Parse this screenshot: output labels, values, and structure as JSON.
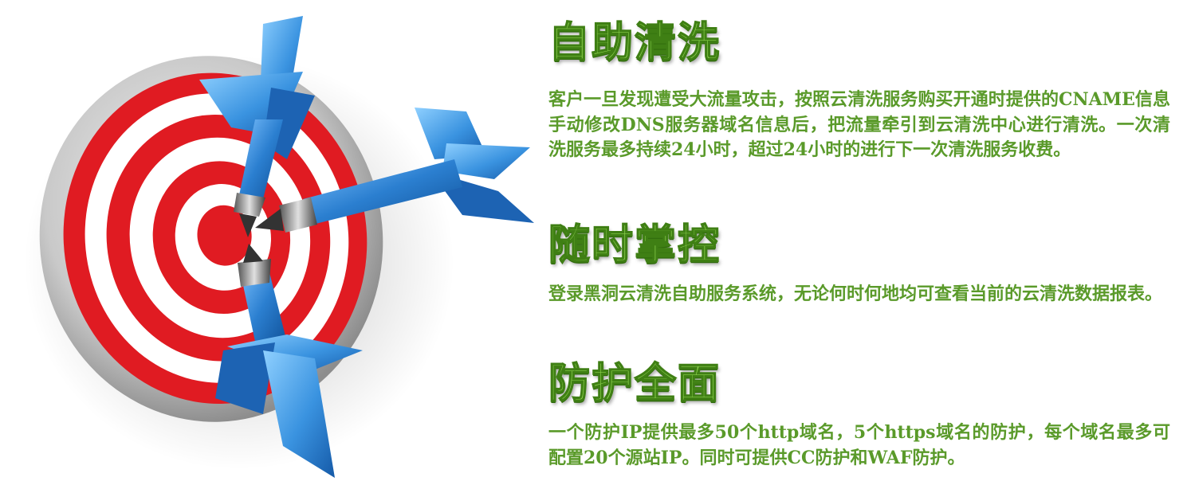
{
  "sections": [
    {
      "title": "自助清洗",
      "body": "客户一旦发现遭受大流量攻击，按照云清洗服务购买开通时提供的CNAME信息手动修改DNS服务器域名信息后，把流量牵引到云清洗中心进行清洗。一次清洗服务最多持续24小时，超过24小时的进行下一次清洗服务收费。"
    },
    {
      "title": "随时掌控",
      "body": "登录黑洞云清洗自助服务系统，无论何时何地均可查看当前的云清洗数据报表。"
    },
    {
      "title": "防护全面",
      "body": "一个防护IP提供最多50个http域名，5个https域名的防护，每个域名最多可配置20个源站IP。同时可提供CC防护和WAF防护。"
    }
  ],
  "colors": {
    "title_fill": "#8bd14d",
    "title_outline": "#3f7f14",
    "body_text": "#5a9a2a",
    "target_red": "#e01b22",
    "dart_blue": "#2b7fd0"
  },
  "illustration": {
    "subject": "dartboard-target-with-three-blue-darts"
  }
}
